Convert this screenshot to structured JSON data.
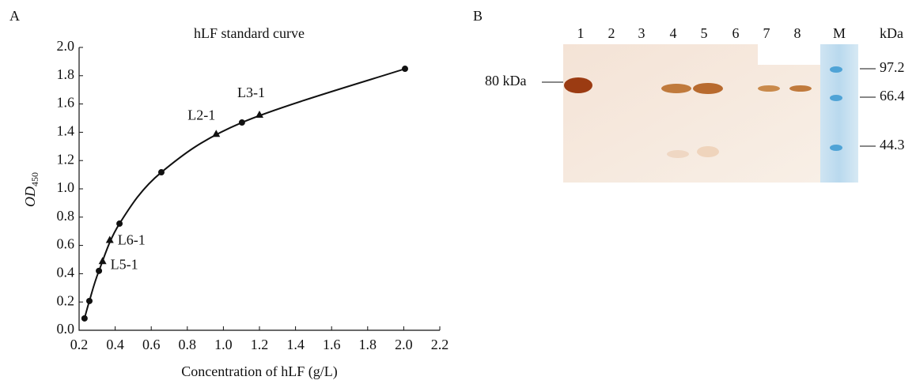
{
  "panel_a": {
    "letter": "A",
    "chart_data": {
      "type": "scatter",
      "title": "hLF standard curve",
      "x_label": "Concentration of hLF (g/L)",
      "y_label": "OD",
      "y_label_subscript": "450",
      "xlim": [
        0.2,
        2.2
      ],
      "ylim": [
        0,
        2.0
      ],
      "xticks": [
        0.2,
        0.4,
        0.6,
        0.8,
        {
          "value": 1.0,
          "label": "1.0"
        },
        1.2,
        1.4,
        1.6,
        1.8,
        {
          "value": 2.0,
          "label": "2.0"
        },
        2.2
      ],
      "yticks": [
        {
          "value": 0,
          "label": "0.0"
        },
        0.2,
        0.4,
        0.6,
        0.8,
        {
          "value": 1.0,
          "label": "1.0"
        },
        1.2,
        1.4,
        1.6,
        1.8,
        {
          "value": 2.0,
          "label": "2.0"
        }
      ],
      "series": [
        {
          "marker": "circle",
          "color": "#111111",
          "curve": true,
          "x": [
            0.23,
            0.257,
            0.31,
            0.424,
            0.656,
            1.103,
            2.007
          ],
          "values": [
            0.084,
            0.207,
            0.42,
            0.754,
            1.117,
            1.469,
            1.849
          ]
        },
        {
          "marker": "triangle",
          "color": "#111111",
          "x": [
            0.33,
            0.37,
            0.96,
            1.2
          ],
          "values": [
            0.49,
            0.64,
            1.39,
            1.525
          ],
          "labels": [
            "L5-1",
            "L6-1",
            "L2-1",
            "L3-1"
          ]
        }
      ]
    }
  },
  "panel_b": {
    "letter": "B",
    "lane_labels": [
      "1",
      "2",
      "3",
      "4",
      "5",
      "6",
      "7",
      "8",
      "M"
    ],
    "unit": "kDa",
    "marker_labels": [
      "97.2",
      "66.4",
      "44.3"
    ],
    "band_label": "80 kDa"
  }
}
